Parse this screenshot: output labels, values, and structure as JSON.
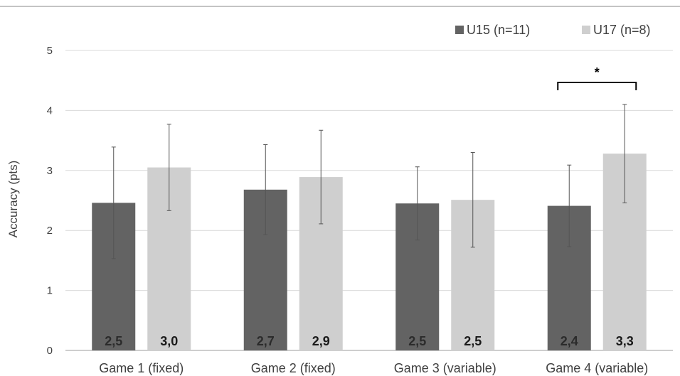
{
  "chart_data": {
    "type": "bar",
    "categories": [
      "Game 1 (fixed)",
      "Game 2 (fixed)",
      "Game 3 (variable)",
      "Game 4 (variable)"
    ],
    "series": [
      {
        "name": "U15 (n=11)",
        "color": "#636363",
        "label_color": "#2b2b2b",
        "values": [
          2.46,
          2.68,
          2.45,
          2.41
        ],
        "error": [
          0.93,
          0.75,
          0.61,
          0.68
        ],
        "labels": [
          "2,5",
          "2,7",
          "2,5",
          "2,4"
        ]
      },
      {
        "name": "U17 (n=8)",
        "color": "#cfcfcf",
        "label_color": "#1a1a1a",
        "values": [
          3.05,
          2.89,
          2.51,
          3.28
        ],
        "error": [
          0.72,
          0.78,
          0.79,
          0.82
        ],
        "labels": [
          "3,0",
          "2,9",
          "2,5",
          "3,3"
        ]
      }
    ],
    "ylabel": "Accuracy (pts)",
    "xlabel": "",
    "ylim": [
      0,
      5
    ],
    "yticks": [
      "0",
      "1",
      "2",
      "3",
      "4",
      "5"
    ],
    "grid": true,
    "legend_position": "top-right",
    "annotation": {
      "category_index": 3,
      "text": "*"
    }
  }
}
